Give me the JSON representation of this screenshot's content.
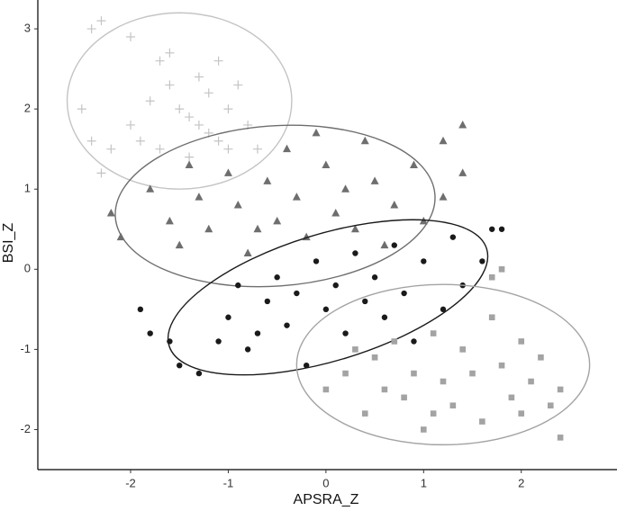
{
  "chart_data": {
    "type": "scatter",
    "x_label": "APSRA_Z",
    "y_label": "BSI_Z",
    "xlim": [
      -2.95,
      2.98
    ],
    "ylim": [
      -2.5,
      3.36
    ],
    "xticks": [
      -2,
      -1,
      0,
      1,
      2
    ],
    "yticks": [
      -2,
      -1,
      0,
      1,
      2,
      3
    ],
    "grid": false,
    "series": [
      {
        "marker": "plus",
        "color": "#c4c4c4",
        "x": [
          -2.4,
          -2.3,
          -2.0,
          -1.7,
          -1.6,
          -1.8,
          -2.5,
          -2.4,
          -2.2,
          -2.3,
          -2.0,
          -1.9,
          -1.5,
          -1.4,
          -1.3,
          -1.2,
          -1.1,
          -1.0,
          -1.2,
          -1.0,
          -0.8,
          -1.1,
          -1.6,
          -0.9,
          -1.4,
          -1.7,
          -0.7,
          -1.3
        ],
        "y": [
          3.0,
          3.1,
          2.9,
          2.6,
          2.3,
          2.1,
          2.0,
          1.6,
          1.5,
          1.2,
          1.8,
          1.6,
          2.0,
          1.9,
          1.8,
          1.7,
          1.6,
          1.5,
          2.2,
          2.0,
          1.8,
          2.6,
          2.7,
          2.3,
          1.4,
          1.5,
          1.5,
          2.4
        ],
        "ellipse": {
          "cx": -1.5,
          "cy": 2.1,
          "rx": 1.15,
          "ry": 1.1,
          "angle": 0
        }
      },
      {
        "marker": "triangle",
        "color": "#6e6e6e",
        "x": [
          -2.2,
          -2.1,
          -1.8,
          -1.6,
          -1.5,
          -1.3,
          -1.2,
          -1.0,
          -0.9,
          -0.8,
          -0.6,
          -0.5,
          -0.4,
          -0.3,
          -0.2,
          0.0,
          0.1,
          0.2,
          0.3,
          0.4,
          0.5,
          0.7,
          0.9,
          1.0,
          1.2,
          1.4,
          1.2,
          1.4,
          -0.1,
          -1.4,
          0.6,
          -0.7
        ],
        "y": [
          0.7,
          0.4,
          1.0,
          0.6,
          0.3,
          0.9,
          0.5,
          1.2,
          0.8,
          0.2,
          1.1,
          0.6,
          1.5,
          0.9,
          0.4,
          1.3,
          0.7,
          1.0,
          0.5,
          1.6,
          1.1,
          0.8,
          1.3,
          0.6,
          0.9,
          1.2,
          1.6,
          1.8,
          1.7,
          1.3,
          0.3,
          0.5
        ],
        "ellipse": {
          "cx": -0.52,
          "cy": 0.79,
          "rx": 1.64,
          "ry": 1.0,
          "angle": -4
        }
      },
      {
        "marker": "circle",
        "color": "#1a1a1a",
        "x": [
          -1.9,
          -1.8,
          -1.6,
          -1.5,
          -1.3,
          -1.1,
          -1.0,
          -0.9,
          -0.8,
          -0.6,
          -0.5,
          -0.4,
          -0.3,
          -0.2,
          -0.1,
          0.0,
          0.1,
          0.2,
          0.3,
          0.4,
          0.5,
          0.6,
          0.7,
          0.8,
          0.9,
          1.0,
          1.2,
          1.4,
          1.6,
          1.7,
          1.8,
          1.3,
          -0.7
        ],
        "y": [
          -0.5,
          -0.8,
          -0.9,
          -1.2,
          -1.3,
          -0.9,
          -0.6,
          -0.2,
          -1.0,
          -0.4,
          -0.1,
          -0.7,
          -0.3,
          -1.2,
          0.1,
          -0.5,
          -0.2,
          -0.8,
          0.2,
          -0.4,
          -0.1,
          -0.6,
          0.3,
          -0.3,
          -0.9,
          0.1,
          -0.5,
          -0.2,
          0.1,
          0.5,
          0.5,
          0.4,
          -0.8
        ],
        "ellipse": {
          "cx": 0.02,
          "cy": -0.35,
          "rx": 1.7,
          "ry": 0.79,
          "angle": -17
        }
      },
      {
        "marker": "square",
        "color": "#a3a3a3",
        "x": [
          0.0,
          0.2,
          0.4,
          0.5,
          0.6,
          0.7,
          0.8,
          0.9,
          1.0,
          1.1,
          1.2,
          1.3,
          1.4,
          1.5,
          1.6,
          1.7,
          1.8,
          1.9,
          2.0,
          2.1,
          2.2,
          2.3,
          2.4,
          2.4,
          1.8,
          1.7,
          1.1,
          0.3,
          2.0
        ],
        "y": [
          -1.5,
          -1.3,
          -1.8,
          -1.1,
          -1.5,
          -0.9,
          -1.6,
          -1.3,
          -2.0,
          -0.8,
          -1.4,
          -1.7,
          -1.0,
          -1.3,
          -1.9,
          -0.6,
          -1.2,
          -1.6,
          -0.9,
          -1.4,
          -1.1,
          -1.7,
          -2.1,
          -1.5,
          0.0,
          -0.1,
          -1.8,
          -1.0,
          -1.8
        ],
        "ellipse": {
          "cx": 1.2,
          "cy": -1.19,
          "rx": 1.5,
          "ry": 1.0,
          "angle": 0
        }
      }
    ]
  }
}
